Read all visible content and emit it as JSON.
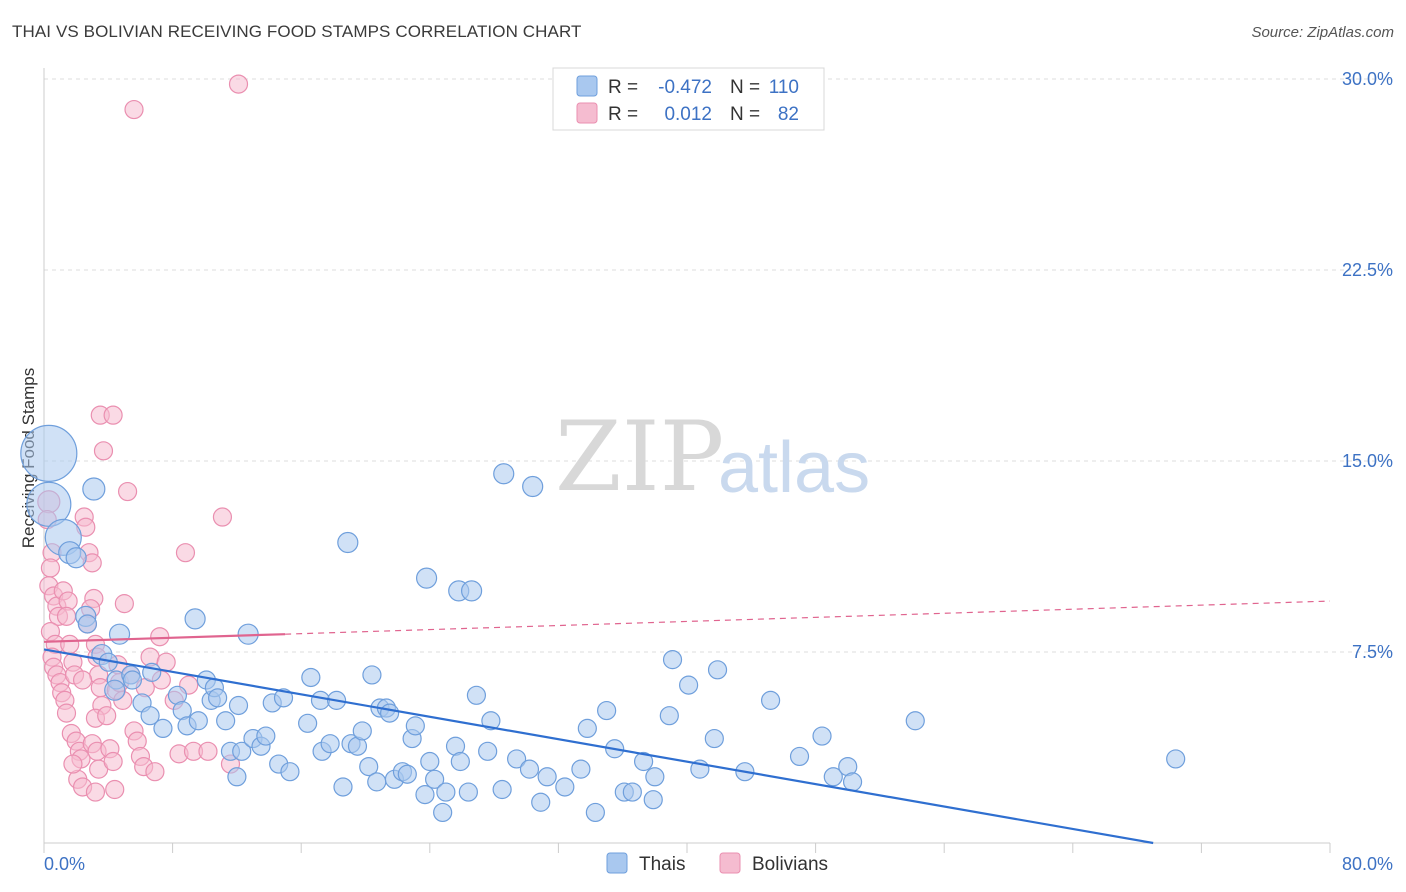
{
  "title": "THAI VS BOLIVIAN RECEIVING FOOD STAMPS CORRELATION CHART",
  "source": "Source: ZipAtlas.com",
  "colors": {
    "thai_fill": "#a9c8ef",
    "thai_stroke": "#6f9fdc",
    "thai_line": "#2f6fd0",
    "bolivian_fill": "#f5bcd0",
    "bolivian_stroke": "#ea8fb0",
    "bolivian_line": "#e0648f",
    "grid": "#dddddd",
    "tick_text": "#3d72c4"
  },
  "watermark": {
    "zip": "ZIP",
    "atlas": "atlas"
  },
  "legend": {
    "rows": [
      {
        "r_label": "R =",
        "r_value": "-0.472",
        "n_label": "N =",
        "n_value": "110"
      },
      {
        "r_label": "R =",
        "r_value": "0.012",
        "n_label": "N =",
        "n_value": "82"
      }
    ]
  },
  "bottom_legend": [
    "Thais",
    "Bolivians"
  ],
  "chart_data": {
    "type": "scatter",
    "xlabel": "",
    "ylabel": "Receiving Food Stamps",
    "xlim": [
      0,
      80
    ],
    "ylim": [
      0,
      31
    ],
    "x_tick_labels": [
      "0.0%",
      "80.0%"
    ],
    "y_ticks": [
      7.5,
      15.0,
      22.5,
      30.0
    ],
    "y_tick_labels": [
      "7.5%",
      "15.0%",
      "22.5%",
      "30.0%"
    ],
    "grid": true,
    "series": [
      {
        "name": "Thais",
        "R": -0.472,
        "N": 110,
        "trend": {
          "x": [
            0,
            69
          ],
          "y": [
            7.6,
            0.0
          ],
          "dashed_to": null
        },
        "points": [
          [
            0.3,
            15.3,
            28
          ],
          [
            0.3,
            13.3,
            22
          ],
          [
            1.2,
            12.0,
            18
          ],
          [
            3.1,
            13.9,
            11
          ],
          [
            1.6,
            11.4,
            11
          ],
          [
            2.0,
            11.2,
            10
          ],
          [
            2.6,
            8.9,
            10
          ],
          [
            2.7,
            8.6,
            9
          ],
          [
            4.7,
            8.2,
            10
          ],
          [
            9.4,
            8.8,
            10
          ],
          [
            12.7,
            8.2,
            10
          ],
          [
            18.9,
            11.8,
            10
          ],
          [
            23.8,
            10.4,
            10
          ],
          [
            25.8,
            9.9,
            10
          ],
          [
            26.6,
            9.9,
            10
          ],
          [
            28.6,
            14.5,
            10
          ],
          [
            30.4,
            14.0,
            10
          ],
          [
            3.6,
            7.4,
            10
          ],
          [
            4.0,
            7.1,
            9
          ],
          [
            4.5,
            6.4,
            9
          ],
          [
            5.4,
            6.6,
            9
          ],
          [
            6.7,
            6.7,
            9
          ],
          [
            4.4,
            6.0,
            10
          ],
          [
            5.5,
            6.4,
            9
          ],
          [
            6.1,
            5.5,
            9
          ],
          [
            6.6,
            5.0,
            9
          ],
          [
            7.4,
            4.5,
            9
          ],
          [
            8.3,
            5.8,
            9
          ],
          [
            8.6,
            5.2,
            9
          ],
          [
            8.9,
            4.6,
            9
          ],
          [
            9.6,
            4.8,
            9
          ],
          [
            10.1,
            6.4,
            9
          ],
          [
            10.4,
            5.6,
            9
          ],
          [
            10.6,
            6.1,
            9
          ],
          [
            10.8,
            5.7,
            9
          ],
          [
            11.3,
            4.8,
            9
          ],
          [
            11.6,
            3.6,
            9
          ],
          [
            12.0,
            2.6,
            9
          ],
          [
            12.1,
            5.4,
            9
          ],
          [
            12.3,
            3.6,
            9
          ],
          [
            13.0,
            4.1,
            9
          ],
          [
            13.5,
            3.8,
            9
          ],
          [
            13.8,
            4.2,
            9
          ],
          [
            14.2,
            5.5,
            9
          ],
          [
            14.6,
            3.1,
            9
          ],
          [
            14.9,
            5.7,
            9
          ],
          [
            15.3,
            2.8,
            9
          ],
          [
            16.4,
            4.7,
            9
          ],
          [
            16.6,
            6.5,
            9
          ],
          [
            17.2,
            5.6,
            9
          ],
          [
            17.3,
            3.6,
            9
          ],
          [
            17.8,
            3.9,
            9
          ],
          [
            18.2,
            5.6,
            9
          ],
          [
            18.6,
            2.2,
            9
          ],
          [
            19.1,
            3.9,
            9
          ],
          [
            19.5,
            3.8,
            9
          ],
          [
            19.8,
            4.4,
            9
          ],
          [
            20.2,
            3.0,
            9
          ],
          [
            20.4,
            6.6,
            9
          ],
          [
            20.7,
            2.4,
            9
          ],
          [
            20.9,
            5.3,
            9
          ],
          [
            21.3,
            5.3,
            9
          ],
          [
            21.5,
            5.1,
            9
          ],
          [
            21.8,
            2.5,
            9
          ],
          [
            22.3,
            2.8,
            9
          ],
          [
            22.6,
            2.7,
            9
          ],
          [
            22.9,
            4.1,
            9
          ],
          [
            23.1,
            4.6,
            9
          ],
          [
            23.7,
            1.9,
            9
          ],
          [
            24.0,
            3.2,
            9
          ],
          [
            24.3,
            2.5,
            9
          ],
          [
            24.8,
            1.2,
            9
          ],
          [
            25.0,
            2.0,
            9
          ],
          [
            25.6,
            3.8,
            9
          ],
          [
            25.9,
            3.2,
            9
          ],
          [
            26.4,
            2.0,
            9
          ],
          [
            26.9,
            5.8,
            9
          ],
          [
            27.6,
            3.6,
            9
          ],
          [
            27.8,
            4.8,
            9
          ],
          [
            28.5,
            2.1,
            9
          ],
          [
            29.4,
            3.3,
            9
          ],
          [
            30.2,
            2.9,
            9
          ],
          [
            30.9,
            1.6,
            9
          ],
          [
            31.3,
            2.6,
            9
          ],
          [
            32.4,
            2.2,
            9
          ],
          [
            33.4,
            2.9,
            9
          ],
          [
            33.8,
            4.5,
            9
          ],
          [
            34.3,
            1.2,
            9
          ],
          [
            35.0,
            5.2,
            9
          ],
          [
            35.5,
            3.7,
            9
          ],
          [
            36.1,
            2.0,
            9
          ],
          [
            36.6,
            2.0,
            9
          ],
          [
            37.3,
            3.2,
            9
          ],
          [
            37.9,
            1.7,
            9
          ],
          [
            38.0,
            2.6,
            9
          ],
          [
            38.9,
            5.0,
            9
          ],
          [
            39.1,
            7.2,
            9
          ],
          [
            40.1,
            6.2,
            9
          ],
          [
            40.8,
            2.9,
            9
          ],
          [
            41.7,
            4.1,
            9
          ],
          [
            41.9,
            6.8,
            9
          ],
          [
            43.6,
            2.8,
            9
          ],
          [
            45.2,
            5.6,
            9
          ],
          [
            47.0,
            3.4,
            9
          ],
          [
            48.4,
            4.2,
            9
          ],
          [
            49.1,
            2.6,
            9
          ],
          [
            50.0,
            3.0,
            9
          ],
          [
            50.3,
            2.4,
            9
          ],
          [
            54.2,
            4.8,
            9
          ],
          [
            70.4,
            3.3,
            9
          ]
        ]
      },
      {
        "name": "Bolivians",
        "R": 0.012,
        "N": 82,
        "trend": {
          "x": [
            0,
            15
          ],
          "y": [
            7.9,
            8.2
          ],
          "dashed_to": [
            80,
            9.5
          ]
        },
        "points": [
          [
            0.3,
            13.4,
            11
          ],
          [
            0.2,
            12.7,
            9
          ],
          [
            0.5,
            11.4,
            9
          ],
          [
            0.4,
            10.8,
            9
          ],
          [
            0.3,
            10.1,
            9
          ],
          [
            0.6,
            9.7,
            9
          ],
          [
            0.8,
            9.3,
            9
          ],
          [
            0.9,
            8.9,
            9
          ],
          [
            0.4,
            8.3,
            9
          ],
          [
            0.7,
            7.8,
            9
          ],
          [
            0.5,
            7.3,
            9
          ],
          [
            0.6,
            6.9,
            9
          ],
          [
            0.8,
            6.6,
            9
          ],
          [
            1.0,
            6.3,
            9
          ],
          [
            1.1,
            5.9,
            9
          ],
          [
            1.3,
            5.6,
            9
          ],
          [
            1.4,
            5.1,
            9
          ],
          [
            1.2,
            9.9,
            9
          ],
          [
            1.5,
            9.5,
            9
          ],
          [
            1.4,
            8.9,
            9
          ],
          [
            1.6,
            7.8,
            9
          ],
          [
            1.8,
            7.1,
            9
          ],
          [
            1.9,
            6.6,
            9
          ],
          [
            1.7,
            4.3,
            9
          ],
          [
            2.0,
            4.0,
            9
          ],
          [
            2.2,
            3.6,
            9
          ],
          [
            2.3,
            3.3,
            9
          ],
          [
            2.1,
            2.5,
            9
          ],
          [
            2.4,
            2.2,
            9
          ],
          [
            2.5,
            12.8,
            9
          ],
          [
            2.6,
            12.4,
            9
          ],
          [
            2.8,
            11.4,
            9
          ],
          [
            3.0,
            11.0,
            9
          ],
          [
            3.1,
            9.6,
            9
          ],
          [
            2.9,
            9.2,
            9
          ],
          [
            2.7,
            8.6,
            9
          ],
          [
            3.2,
            7.8,
            9
          ],
          [
            3.3,
            7.3,
            9
          ],
          [
            3.4,
            6.6,
            9
          ],
          [
            3.5,
            6.1,
            9
          ],
          [
            3.6,
            5.4,
            9
          ],
          [
            3.2,
            4.9,
            9
          ],
          [
            3.0,
            3.9,
            9
          ],
          [
            3.3,
            3.6,
            9
          ],
          [
            3.4,
            2.9,
            9
          ],
          [
            3.2,
            2.0,
            9
          ],
          [
            3.5,
            16.8,
            9
          ],
          [
            3.7,
            15.4,
            9
          ],
          [
            3.9,
            5.0,
            9
          ],
          [
            4.1,
            3.7,
            9
          ],
          [
            4.3,
            3.2,
            9
          ],
          [
            4.4,
            2.1,
            9
          ],
          [
            4.5,
            6.0,
            9
          ],
          [
            4.7,
            6.3,
            9
          ],
          [
            4.6,
            7.0,
            9
          ],
          [
            4.9,
            5.6,
            9
          ],
          [
            4.3,
            16.8,
            9
          ],
          [
            5.2,
            13.8,
            9
          ],
          [
            5.0,
            9.4,
            9
          ],
          [
            5.4,
            6.6,
            9
          ],
          [
            5.6,
            4.4,
            9
          ],
          [
            5.8,
            4.0,
            9
          ],
          [
            6.0,
            3.4,
            9
          ],
          [
            6.2,
            3.0,
            9
          ],
          [
            6.3,
            6.1,
            9
          ],
          [
            6.6,
            7.3,
            9
          ],
          [
            6.9,
            2.8,
            9
          ],
          [
            7.2,
            8.1,
            9
          ],
          [
            7.6,
            7.1,
            9
          ],
          [
            7.3,
            6.4,
            9
          ],
          [
            8.1,
            5.6,
            9
          ],
          [
            8.4,
            3.5,
            9
          ],
          [
            8.8,
            11.4,
            9
          ],
          [
            9.0,
            6.2,
            9
          ],
          [
            9.3,
            3.6,
            9
          ],
          [
            10.2,
            3.6,
            9
          ],
          [
            11.1,
            12.8,
            9
          ],
          [
            11.6,
            3.1,
            9
          ],
          [
            12.1,
            29.8,
            9
          ],
          [
            5.6,
            28.8,
            9
          ],
          [
            1.8,
            3.1,
            9
          ],
          [
            2.4,
            6.4,
            9
          ]
        ]
      }
    ]
  }
}
